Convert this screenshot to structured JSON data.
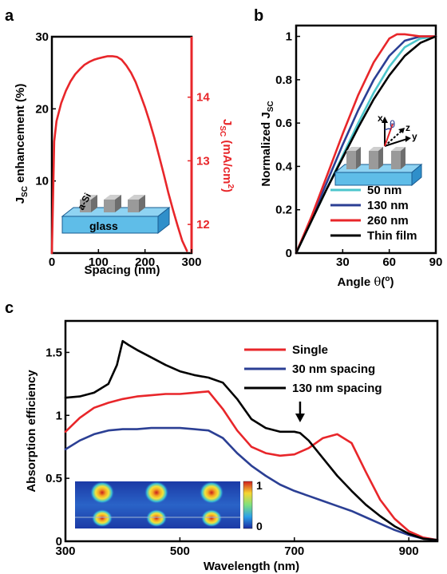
{
  "panel_labels": {
    "a": "a",
    "b": "b",
    "c": "c"
  },
  "colors": {
    "red": "#e8262a",
    "blue": "#2b3f94",
    "black": "#000000",
    "cyan": "#4cc6cc"
  },
  "chart_data": [
    {
      "id": "a",
      "type": "line",
      "xlabel": "Spacing  (nm)",
      "ylabel_left": {
        "main": "J",
        "sub": "SC",
        "rest": " enhancement (%)"
      },
      "ylabel_right": {
        "main": "J",
        "sub": "SC",
        "rest": " (mA/cm",
        "sup": "2",
        "end": ")"
      },
      "xlim": [
        0,
        300
      ],
      "ylim": [
        0,
        30
      ],
      "xticks": [
        "0",
        "100",
        "200",
        "300"
      ],
      "yticks_left": [
        "10",
        "20",
        "30"
      ],
      "yticks_right": [
        "12",
        "13",
        "14"
      ],
      "inset_labels": {
        "nanowire": "a-Si",
        "substrate": "glass"
      },
      "series": [
        {
          "color": "red",
          "x": [
            0,
            5,
            10,
            20,
            30,
            40,
            50,
            60,
            70,
            80,
            90,
            100,
            110,
            120,
            130,
            140,
            150,
            160,
            170,
            180,
            190,
            200,
            210,
            220,
            230,
            240,
            250,
            260,
            270,
            280,
            290
          ],
          "y": [
            0,
            15.5,
            18.3,
            20.8,
            22.5,
            23.8,
            24.8,
            25.5,
            26.1,
            26.5,
            26.8,
            27.0,
            27.15,
            27.3,
            27.3,
            27.2,
            26.8,
            26.0,
            25.0,
            23.7,
            22.0,
            20.2,
            18.2,
            16.0,
            13.5,
            11.0,
            8.4,
            6.0,
            3.8,
            1.7,
            0.3
          ]
        }
      ]
    },
    {
      "id": "b",
      "type": "line",
      "xlabel": {
        "main": "Angle ",
        "theta": "θ",
        "rest": "(",
        "sup": "o",
        "end": ")"
      },
      "ylabel": {
        "main": "Normalized J",
        "sub": "SC"
      },
      "xlim": [
        0,
        90
      ],
      "ylim": [
        0,
        1.05
      ],
      "xticks": [
        "30",
        "60",
        "90"
      ],
      "yticks": [
        "0",
        "0.2",
        "0.4",
        "0.6",
        "0.8",
        "1"
      ],
      "inset_labels": {
        "x": "x",
        "y": "y",
        "z": "z",
        "theta": "θ"
      },
      "series": [
        {
          "name": "50 nm",
          "color": "cyan",
          "x": [
            0,
            10,
            20,
            30,
            40,
            50,
            60,
            70,
            80,
            90
          ],
          "y": [
            0,
            0.15,
            0.3,
            0.45,
            0.6,
            0.74,
            0.86,
            0.95,
            0.99,
            1.0
          ]
        },
        {
          "name": "130 nm",
          "color": "blue",
          "x": [
            0,
            10,
            20,
            30,
            40,
            50,
            60,
            70,
            80,
            90
          ],
          "y": [
            0,
            0.16,
            0.33,
            0.5,
            0.66,
            0.8,
            0.91,
            0.98,
            1.0,
            1.0
          ]
        },
        {
          "name": "260 nm",
          "color": "red",
          "x": [
            0,
            10,
            20,
            30,
            40,
            50,
            60,
            65,
            70,
            80,
            90
          ],
          "y": [
            0,
            0.17,
            0.36,
            0.55,
            0.73,
            0.88,
            0.99,
            1.01,
            1.01,
            1.0,
            1.0
          ]
        },
        {
          "name": "Thin film",
          "color": "black",
          "x": [
            0,
            10,
            20,
            30,
            40,
            50,
            60,
            70,
            80,
            90
          ],
          "y": [
            0,
            0.15,
            0.3,
            0.44,
            0.58,
            0.71,
            0.82,
            0.91,
            0.97,
            1.0
          ]
        }
      ]
    },
    {
      "id": "c",
      "type": "line",
      "xlabel": "Wavelength (nm)",
      "ylabel": "Absorption efficiency",
      "xlim": [
        300,
        950
      ],
      "ylim": [
        0,
        1.75
      ],
      "xticks": [
        "300",
        "500",
        "700",
        "900"
      ],
      "yticks": [
        "0",
        "0.5",
        "1",
        "1.5"
      ],
      "colorbar_ticks": [
        "1",
        "0"
      ],
      "series": [
        {
          "name": "Single",
          "color": "red",
          "x": [
            300,
            325,
            350,
            375,
            400,
            425,
            450,
            475,
            500,
            525,
            550,
            575,
            600,
            625,
            650,
            675,
            700,
            725,
            750,
            775,
            800,
            825,
            850,
            875,
            900,
            925,
            950
          ],
          "y": [
            0.87,
            0.98,
            1.06,
            1.1,
            1.13,
            1.15,
            1.16,
            1.17,
            1.17,
            1.18,
            1.19,
            1.05,
            0.88,
            0.75,
            0.7,
            0.68,
            0.69,
            0.74,
            0.82,
            0.85,
            0.78,
            0.55,
            0.33,
            0.18,
            0.08,
            0.03,
            0.01
          ]
        },
        {
          "name": "30 nm spacing",
          "color": "blue",
          "x": [
            300,
            325,
            350,
            375,
            400,
            425,
            450,
            475,
            500,
            525,
            550,
            575,
            600,
            625,
            650,
            675,
            700,
            725,
            750,
            775,
            800,
            825,
            850,
            875,
            900,
            925,
            950
          ],
          "y": [
            0.73,
            0.8,
            0.85,
            0.88,
            0.89,
            0.89,
            0.9,
            0.9,
            0.9,
            0.89,
            0.88,
            0.82,
            0.7,
            0.6,
            0.52,
            0.45,
            0.4,
            0.36,
            0.32,
            0.28,
            0.24,
            0.19,
            0.14,
            0.09,
            0.05,
            0.02,
            0.01
          ]
        },
        {
          "name": "130 nm spacing",
          "color": "black",
          "x": [
            300,
            325,
            350,
            375,
            390,
            400,
            410,
            425,
            450,
            475,
            500,
            525,
            550,
            575,
            600,
            625,
            650,
            675,
            700,
            710,
            725,
            750,
            775,
            800,
            825,
            850,
            875,
            900,
            925,
            950
          ],
          "y": [
            1.14,
            1.15,
            1.18,
            1.25,
            1.4,
            1.59,
            1.56,
            1.52,
            1.46,
            1.4,
            1.35,
            1.32,
            1.3,
            1.26,
            1.13,
            0.97,
            0.9,
            0.87,
            0.87,
            0.86,
            0.8,
            0.66,
            0.52,
            0.4,
            0.29,
            0.2,
            0.12,
            0.06,
            0.02,
            0.01
          ]
        }
      ],
      "arrow_at_x": 710
    }
  ]
}
